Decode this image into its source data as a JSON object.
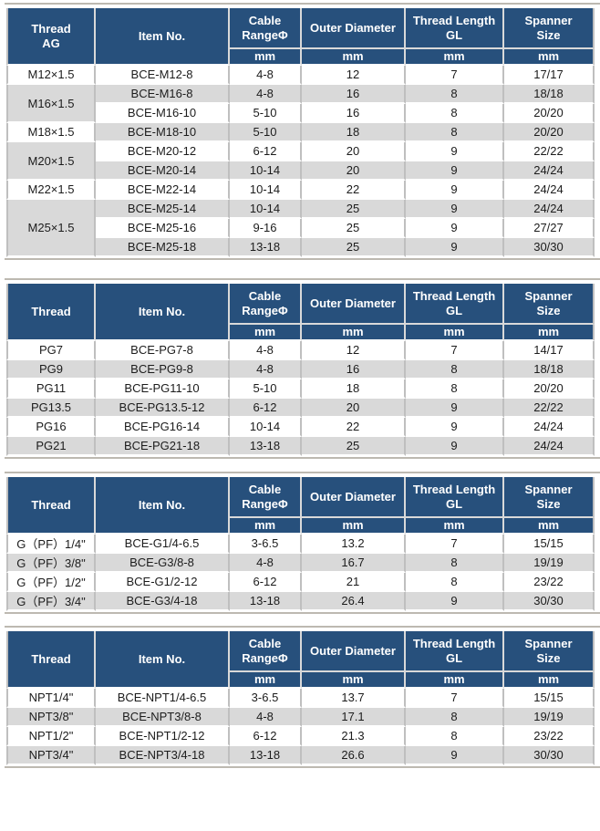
{
  "colors": {
    "header_bg": "#27507c",
    "header_text": "#ffffff",
    "row_bg": "#ffffff",
    "row_alt_bg": "#d9d9d9",
    "grid_line": "#bfbfbf",
    "outer_line": "#bdb9b1",
    "data_text": "#1c1c1c"
  },
  "column_headers": {
    "item": "Item No.",
    "cable_line1": "Cable",
    "cable_line2": "RangeΦ",
    "outer": "Outer Diameter",
    "thread_length_line1": "Thread Length",
    "thread_length_line2": "GL",
    "spanner_line1": "Spanner",
    "spanner_line2": "Size",
    "unit": "mm"
  },
  "tables": [
    {
      "thread_header_lines": [
        "Thread",
        "AG"
      ],
      "groups": [
        {
          "thread": "M12×1.5",
          "rows": [
            [
              "BCE-M12-8",
              "4-8",
              "12",
              "7",
              "17/17"
            ]
          ]
        },
        {
          "thread": "M16×1.5",
          "rows": [
            [
              "BCE-M16-8",
              "4-8",
              "16",
              "8",
              "18/18"
            ],
            [
              "BCE-M16-10",
              "5-10",
              "16",
              "8",
              "20/20"
            ]
          ]
        },
        {
          "thread": "M18×1.5",
          "rows": [
            [
              "BCE-M18-10",
              "5-10",
              "18",
              "8",
              "20/20"
            ]
          ]
        },
        {
          "thread": "M20×1.5",
          "rows": [
            [
              "BCE-M20-12",
              "6-12",
              "20",
              "9",
              "22/22"
            ],
            [
              "BCE-M20-14",
              "10-14",
              "20",
              "9",
              "24/24"
            ]
          ]
        },
        {
          "thread": "M22×1.5",
          "rows": [
            [
              "BCE-M22-14",
              "10-14",
              "22",
              "9",
              "24/24"
            ]
          ]
        },
        {
          "thread": "M25×1.5",
          "rows": [
            [
              "BCE-M25-14",
              "10-14",
              "25",
              "9",
              "24/24"
            ],
            [
              "BCE-M25-16",
              "9-16",
              "25",
              "9",
              "27/27"
            ],
            [
              "BCE-M25-18",
              "13-18",
              "25",
              "9",
              "30/30"
            ]
          ]
        }
      ]
    },
    {
      "thread_header_lines": [
        "Thread"
      ],
      "groups": [
        {
          "thread": "PG7",
          "rows": [
            [
              "BCE-PG7-8",
              "4-8",
              "12",
              "7",
              "14/17"
            ]
          ]
        },
        {
          "thread": "PG9",
          "rows": [
            [
              "BCE-PG9-8",
              "4-8",
              "16",
              "8",
              "18/18"
            ]
          ]
        },
        {
          "thread": "PG11",
          "rows": [
            [
              "BCE-PG11-10",
              "5-10",
              "18",
              "8",
              "20/20"
            ]
          ]
        },
        {
          "thread": "PG13.5",
          "rows": [
            [
              "BCE-PG13.5-12",
              "6-12",
              "20",
              "9",
              "22/22"
            ]
          ]
        },
        {
          "thread": "PG16",
          "rows": [
            [
              "BCE-PG16-14",
              "10-14",
              "22",
              "9",
              "24/24"
            ]
          ]
        },
        {
          "thread": "PG21",
          "rows": [
            [
              "BCE-PG21-18",
              "13-18",
              "25",
              "9",
              "24/24"
            ]
          ]
        }
      ]
    },
    {
      "thread_header_lines": [
        "Thread"
      ],
      "groups": [
        {
          "thread": "G（PF）1/4\"",
          "rows": [
            [
              "BCE-G1/4-6.5",
              "3-6.5",
              "13.2",
              "7",
              "15/15"
            ]
          ]
        },
        {
          "thread": "G（PF）3/8\"",
          "rows": [
            [
              "BCE-G3/8-8",
              "4-8",
              "16.7",
              "8",
              "19/19"
            ]
          ]
        },
        {
          "thread": "G（PF）1/2\"",
          "rows": [
            [
              "BCE-G1/2-12",
              "6-12",
              "21",
              "8",
              "23/22"
            ]
          ]
        },
        {
          "thread": "G（PF）3/4\"",
          "rows": [
            [
              "BCE-G3/4-18",
              "13-18",
              "26.4",
              "9",
              "30/30"
            ]
          ]
        }
      ]
    },
    {
      "thread_header_lines": [
        "Thread"
      ],
      "groups": [
        {
          "thread": "NPT1/4\"",
          "rows": [
            [
              "BCE-NPT1/4-6.5",
              "3-6.5",
              "13.7",
              "7",
              "15/15"
            ]
          ]
        },
        {
          "thread": "NPT3/8\"",
          "rows": [
            [
              "BCE-NPT3/8-8",
              "4-8",
              "17.1",
              "8",
              "19/19"
            ]
          ]
        },
        {
          "thread": "NPT1/2\"",
          "rows": [
            [
              "BCE-NPT1/2-12",
              "6-12",
              "21.3",
              "8",
              "23/22"
            ]
          ]
        },
        {
          "thread": "NPT3/4\"",
          "rows": [
            [
              "BCE-NPT3/4-18",
              "13-18",
              "26.6",
              "9",
              "30/30"
            ]
          ]
        }
      ]
    }
  ]
}
